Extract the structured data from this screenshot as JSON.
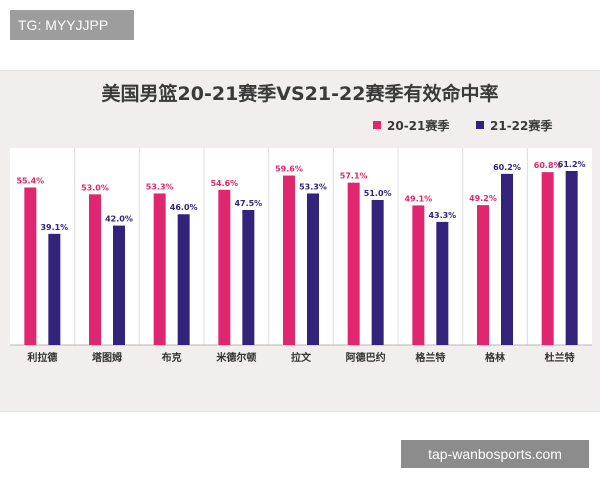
{
  "overlay_tag": "TG: MYYJJPP",
  "watermark": "tap-wanbosports.com",
  "colors": {
    "series1": "#e0266e",
    "series2": "#33237a"
  },
  "chart_data": {
    "type": "bar",
    "title": "美国男篮20-21赛季VS21-22赛季有效命中率",
    "categories": [
      "利拉德",
      "塔图姆",
      "布克",
      "米德尔顿",
      "拉文",
      "阿德巴约",
      "格兰特",
      "格林",
      "杜兰特"
    ],
    "series": [
      {
        "name": "20-21赛季",
        "values": [
          55.4,
          53.0,
          53.3,
          54.6,
          59.6,
          57.1,
          49.1,
          49.2,
          60.8
        ],
        "labels": [
          "55.4%",
          "53.0%",
          "53.3%",
          "54.6%",
          "59.6%",
          "57.1%",
          "49.1%",
          "49.2%",
          "60.8%"
        ]
      },
      {
        "name": "21-22赛季",
        "values": [
          39.1,
          42.0,
          46.0,
          47.5,
          53.3,
          51.0,
          43.3,
          60.2,
          61.2
        ],
        "labels": [
          "39.1%",
          "42.0%",
          "46.0%",
          "47.5%",
          "53.3%",
          "51.0%",
          "43.3%",
          "60.2%",
          "61.2%"
        ]
      }
    ],
    "legend_position": "top-right",
    "grid": false
  }
}
